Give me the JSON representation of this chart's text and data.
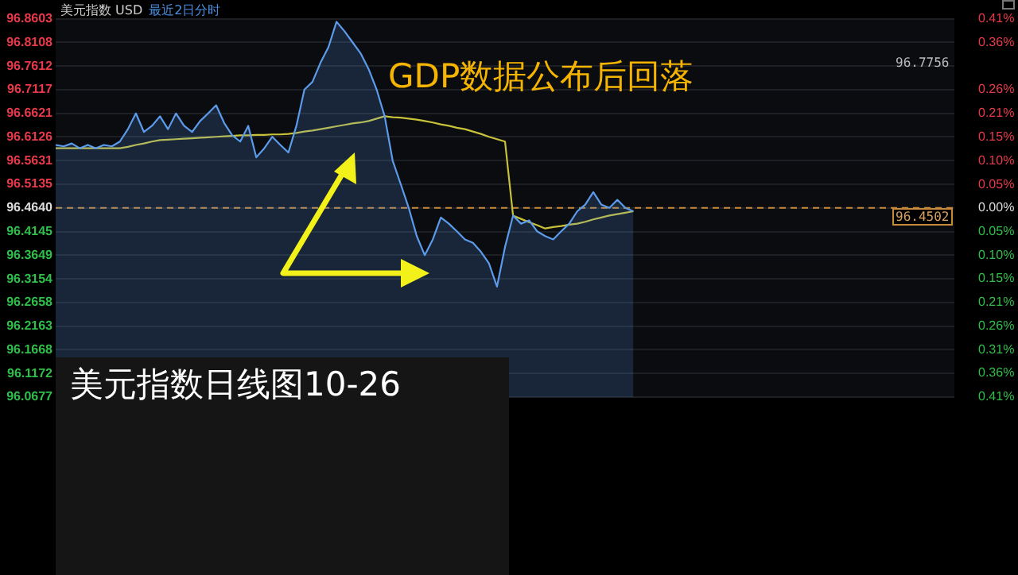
{
  "chart_data": {
    "type": "line",
    "title": "美元指数 USD",
    "subtitle": "最近2日分时",
    "categories": [
      null,
      null,
      null,
      null,
      null,
      null,
      null,
      null,
      null,
      null,
      null,
      null,
      null,
      null,
      null,
      null,
      null,
      null,
      null,
      null,
      null,
      null,
      null,
      null,
      null,
      null,
      null,
      null,
      null,
      null,
      null,
      null,
      null,
      null,
      null,
      null,
      null,
      null,
      null,
      null,
      null,
      null,
      null,
      null,
      null,
      null,
      null,
      null,
      null,
      null,
      null,
      null,
      null,
      null,
      null,
      null,
      null,
      null,
      null,
      null,
      null,
      null,
      null,
      null,
      null,
      null,
      null,
      null,
      null,
      null,
      null,
      null,
      null,
      null,
      null,
      null,
      null,
      null,
      null,
      null,
      null,
      null,
      null,
      null,
      null,
      null,
      null,
      null,
      null,
      null,
      null,
      null,
      null,
      null,
      null,
      null,
      null,
      null,
      null,
      null,
      null,
      null,
      null,
      null,
      null,
      null,
      null,
      null,
      null,
      null,
      null,
      null,
      null
    ],
    "series": [
      {
        "type": "area",
        "color": "#5b9bea",
        "values": [
          96.596,
          96.593,
          96.599,
          96.589,
          96.596,
          96.589,
          96.596,
          96.593,
          96.603,
          96.629,
          96.662,
          96.623,
          96.636,
          96.656,
          96.629,
          96.662,
          96.636,
          96.623,
          96.646,
          96.662,
          96.679,
          96.642,
          96.616,
          96.603,
          96.636,
          96.57,
          96.589,
          96.613,
          96.596,
          96.58,
          96.636,
          96.712,
          96.728,
          96.768,
          96.801,
          96.854,
          96.834,
          96.811,
          96.788,
          96.755,
          96.712,
          96.656,
          96.563,
          96.514,
          96.464,
          96.405,
          96.365,
          96.398,
          96.444,
          96.431,
          96.415,
          96.398,
          96.391,
          96.372,
          96.348,
          96.299,
          96.382,
          96.448,
          96.431,
          96.438,
          96.415,
          96.405,
          96.398,
          96.415,
          96.431,
          96.457,
          96.471,
          96.497,
          96.471,
          96.464,
          96.481,
          96.464,
          96.457,
          null,
          null,
          null,
          null,
          null,
          null,
          null,
          null,
          null,
          null,
          null,
          null,
          null,
          null,
          null,
          null,
          null,
          null,
          null,
          null,
          null,
          null,
          null,
          null,
          null,
          null,
          null,
          null,
          null,
          null,
          null,
          null,
          null,
          null,
          null,
          null,
          null,
          null,
          null,
          null
        ]
      },
      {
        "type": "line",
        "color": "#c8c23a",
        "values": [
          96.589,
          96.589,
          96.589,
          96.589,
          96.589,
          96.589,
          96.589,
          96.589,
          96.589,
          96.592,
          96.596,
          96.599,
          96.603,
          96.606,
          96.607,
          96.608,
          96.609,
          96.61,
          96.611,
          96.612,
          96.613,
          96.614,
          96.615,
          96.616,
          96.616,
          96.617,
          96.617,
          96.618,
          96.618,
          96.619,
          96.621,
          96.624,
          96.626,
          96.629,
          96.632,
          96.635,
          96.638,
          96.641,
          96.643,
          96.646,
          96.651,
          96.656,
          96.654,
          96.653,
          96.651,
          96.649,
          96.646,
          96.643,
          96.639,
          96.636,
          96.632,
          96.629,
          96.624,
          96.619,
          96.613,
          96.608,
          96.603,
          96.448,
          96.441,
          96.434,
          96.428,
          96.421,
          96.424,
          96.426,
          96.429,
          96.431,
          96.435,
          96.44,
          96.444,
          96.448,
          96.451,
          96.454,
          96.457,
          null,
          null,
          null,
          null,
          null,
          null,
          null,
          null,
          null,
          null,
          null,
          null,
          null,
          null,
          null,
          null,
          null,
          null,
          null,
          null,
          null,
          null,
          null,
          null,
          null,
          null,
          null,
          null,
          null,
          null,
          null,
          null,
          null,
          null,
          null,
          null,
          null,
          null,
          null,
          null
        ]
      }
    ],
    "ylim": [
      96.0677,
      96.8603
    ],
    "yticks": [
      96.8603,
      96.8108,
      96.7612,
      96.7117,
      96.6621,
      96.6126,
      96.5631,
      96.5135,
      {
        "value": 96.464,
        "label": "96.4640"
      },
      96.4145,
      96.3649,
      96.3154,
      96.2658,
      96.2163,
      96.1668,
      96.1172,
      96.0677
    ],
    "y2lim": [
      -0.411,
      0.411
    ],
    "y2ticks": [
      {
        "value": 0.411,
        "label": "0.41%"
      },
      {
        "value": 0.359,
        "label": "0.36%"
      },
      {
        "value": 0.257,
        "label": "0.26%"
      },
      {
        "value": 0.205,
        "label": "0.21%"
      },
      {
        "value": 0.154,
        "label": "0.15%"
      },
      {
        "value": 0.103,
        "label": "0.10%"
      },
      {
        "value": 0.051,
        "label": "0.05%"
      },
      {
        "value": 0,
        "label": "0.00%"
      },
      {
        "value": -0.051,
        "label": "0.05%"
      },
      {
        "value": -0.103,
        "label": "0.10%"
      },
      {
        "value": -0.154,
        "label": "0.15%"
      },
      {
        "value": -0.205,
        "label": "0.21%"
      },
      {
        "value": -0.257,
        "label": "0.26%"
      },
      {
        "value": -0.308,
        "label": "0.31%"
      },
      {
        "value": -0.359,
        "label": "0.36%"
      },
      {
        "value": -0.411,
        "label": "0.41%"
      }
    ],
    "tick_labels": "y",
    "grid": "y",
    "legend": false,
    "marker": "none",
    "ref_lines": [
      {
        "axis": "y",
        "value": 96.464,
        "color": "#c88a3a",
        "line_style": "dashed"
      }
    ],
    "annotations": [
      "GDP数据公布后回落",
      "美元指数日线图10-26",
      "96.7756",
      "96.4502"
    ]
  }
}
